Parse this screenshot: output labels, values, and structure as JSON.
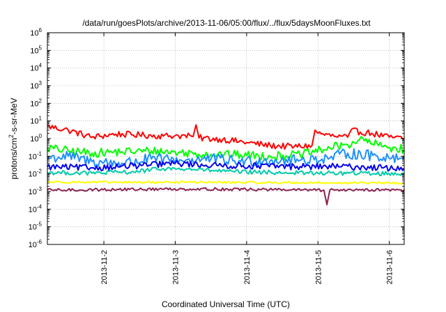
{
  "chart_data": {
    "type": "line",
    "title": "/data/run/goesPlots/archive/2013-11-06/05:00/flux/../flux/5daysMoonFluxes.txt",
    "xlabel": "Coordinated Universal Time (UTC)",
    "ylabel_base": "protons/cm",
    "ylabel_sup": "2",
    "ylabel_rest": "-s-sr-MeV",
    "y_scale": "log",
    "ylim_exp": [
      -6,
      6
    ],
    "y_ticks": [
      {
        "base": "10",
        "exp": "-6"
      },
      {
        "base": "10",
        "exp": "-5"
      },
      {
        "base": "10",
        "exp": "-4"
      },
      {
        "base": "10",
        "exp": "-3"
      },
      {
        "base": "10",
        "exp": "-2"
      },
      {
        "base": "10",
        "exp": "-1"
      },
      {
        "base": "10",
        "exp": "0"
      },
      {
        "base": "10",
        "exp": "1"
      },
      {
        "base": "10",
        "exp": "2"
      },
      {
        "base": "10",
        "exp": "3"
      },
      {
        "base": "10",
        "exp": "4"
      },
      {
        "base": "10",
        "exp": "5"
      },
      {
        "base": "10",
        "exp": "6"
      }
    ],
    "xlim": [
      "2013-11-01 05:00",
      "2013-11-06 05:00"
    ],
    "x_ticks": [
      "2013-11-2",
      "2013-11-3",
      "2013-11-4",
      "2013-11-5",
      "2013-11-6"
    ],
    "x_tick_dates": [
      "2013-11-02 00:00",
      "2013-11-03 00:00",
      "2013-11-04 00:00",
      "2013-11-05 00:00",
      "2013-11-06 00:00"
    ],
    "grid": true,
    "legend": "none",
    "series": [
      {
        "color": "#ff0000",
        "x": [
          "2013-11-01 05:00",
          "2013-11-01 12:00",
          "2013-11-01 20:00",
          "2013-11-02 04:00",
          "2013-11-02 12:00",
          "2013-11-02 20:00",
          "2013-11-03 00:00",
          "2013-11-03 06:00",
          "2013-11-03 07:00",
          "2013-11-03 08:00",
          "2013-11-03 16:00",
          "2013-11-04 00:00",
          "2013-11-04 08:00",
          "2013-11-04 16:00",
          "2013-11-04 22:00",
          "2013-11-04 23:00",
          "2013-11-05 00:00",
          "2013-11-05 06:00",
          "2013-11-05 10:00",
          "2013-11-05 11:00",
          "2013-11-05 18:00",
          "2013-11-06 00:00",
          "2013-11-06 05:00"
        ],
        "y": [
          5,
          3,
          1.2,
          1.8,
          1.6,
          1.4,
          1.5,
          1.3,
          6,
          1.1,
          0.9,
          0.6,
          0.4,
          0.35,
          0.4,
          3,
          2,
          1.3,
          1.2,
          2.8,
          2,
          1.2,
          1
        ]
      },
      {
        "color": "#00ff00",
        "x": [
          "2013-11-01 05:00",
          "2013-11-01 12:00",
          "2013-11-01 20:00",
          "2013-11-02 06:00",
          "2013-11-02 16:00",
          "2013-11-03 02:00",
          "2013-11-03 12:00",
          "2013-11-03 22:00",
          "2013-11-04 08:00",
          "2013-11-04 18:00",
          "2013-11-05 04:00",
          "2013-11-05 10:00",
          "2013-11-05 14:00",
          "2013-11-05 22:00",
          "2013-11-06 05:00"
        ],
        "y": [
          0.3,
          0.2,
          0.15,
          0.18,
          0.2,
          0.16,
          0.13,
          0.12,
          0.1,
          0.12,
          0.3,
          0.45,
          0.9,
          0.35,
          0.25
        ]
      },
      {
        "color": "#1e90ff",
        "x": [
          "2013-11-01 05:00",
          "2013-11-01 12:00",
          "2013-11-01 20:00",
          "2013-11-02 06:00",
          "2013-11-02 16:00",
          "2013-11-03 02:00",
          "2013-11-03 12:00",
          "2013-11-03 22:00",
          "2013-11-04 08:00",
          "2013-11-04 18:00",
          "2013-11-05 04:00",
          "2013-11-05 10:00",
          "2013-11-05 20:00",
          "2013-11-06 05:00"
        ],
        "y": [
          0.08,
          0.1,
          0.05,
          0.04,
          0.07,
          0.06,
          0.07,
          0.05,
          0.06,
          0.06,
          0.08,
          0.15,
          0.1,
          0.08
        ]
      },
      {
        "color": "#0000ee",
        "x": [
          "2013-11-01 05:00",
          "2013-11-01 20:00",
          "2013-11-02 10:00",
          "2013-11-03 00:00",
          "2013-11-03 14:00",
          "2013-11-04 04:00",
          "2013-11-04 18:00",
          "2013-11-05 08:00",
          "2013-11-05 22:00",
          "2013-11-06 05:00"
        ],
        "y": [
          0.025,
          0.022,
          0.028,
          0.04,
          0.03,
          0.028,
          0.026,
          0.026,
          0.022,
          0.02
        ]
      },
      {
        "color": "#00ccaa",
        "x": [
          "2013-11-01 05:00",
          "2013-11-01 20:00",
          "2013-11-02 10:00",
          "2013-11-02 20:00",
          "2013-11-03 06:00",
          "2013-11-03 20:00",
          "2013-11-04 10:00",
          "2013-11-05 00:00",
          "2013-11-05 14:00",
          "2013-11-06 05:00"
        ],
        "y": [
          0.012,
          0.011,
          0.013,
          0.02,
          0.018,
          0.013,
          0.012,
          0.011,
          0.011,
          0.01
        ]
      },
      {
        "color": "#ffff00",
        "x": [
          "2013-11-01 05:00",
          "2013-11-02 05:00",
          "2013-11-03 05:00",
          "2013-11-04 05:00",
          "2013-11-05 05:00",
          "2013-11-06 05:00"
        ],
        "y": [
          0.0035,
          0.0033,
          0.0034,
          0.0032,
          0.0031,
          0.003
        ]
      },
      {
        "color": "#8b2252",
        "x": [
          "2013-11-01 05:00",
          "2013-11-02 05:00",
          "2013-11-03 05:00",
          "2013-11-04 05:00",
          "2013-11-05 02:00",
          "2013-11-05 03:00",
          "2013-11-05 04:00",
          "2013-11-05 14:00",
          "2013-11-06 05:00"
        ],
        "y": [
          0.0012,
          0.0013,
          0.0014,
          0.0013,
          0.0012,
          0.00018,
          0.0012,
          0.0013,
          0.0012
        ]
      }
    ]
  }
}
